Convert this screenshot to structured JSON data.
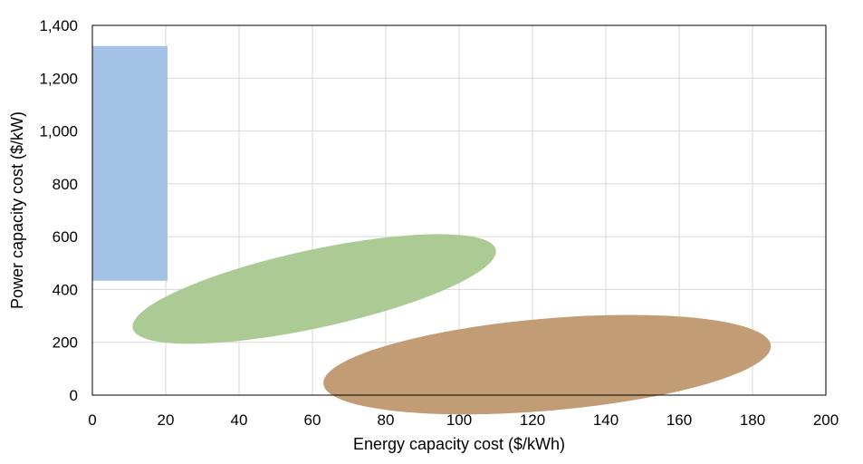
{
  "chart_data": {
    "type": "scatter",
    "title": "",
    "xlabel": "Energy capacity cost ($/kWh)",
    "ylabel": "Power capacity cost ($/kW)",
    "xlim": [
      0,
      200
    ],
    "ylim": [
      0,
      1400
    ],
    "x_ticks": [
      0,
      20,
      40,
      60,
      80,
      100,
      120,
      140,
      160,
      180,
      200
    ],
    "y_ticks": [
      0,
      200,
      400,
      600,
      800,
      1000,
      1200,
      1400
    ],
    "x_tick_labels": [
      "0",
      "20",
      "40",
      "60",
      "80",
      "100",
      "120",
      "140",
      "160",
      "180",
      "200"
    ],
    "y_tick_labels": [
      "0",
      "200",
      "400",
      "600",
      "800",
      "1,000",
      "1,200",
      "1,400"
    ],
    "grid": true,
    "legend": "none",
    "regions": [
      {
        "shape": "rectangle",
        "color": "#a4c2e6",
        "x_range": [
          0,
          20.5
        ],
        "y_range": [
          433,
          1322
        ]
      },
      {
        "shape": "ellipse",
        "color": "#acca94",
        "center": [
          60.5,
          402
        ],
        "major_axis_endpoints": [
          [
            11,
            253
          ],
          [
            110,
            551
          ]
        ],
        "width_ratio": 0.21
      },
      {
        "shape": "ellipse",
        "color": "#c29c74",
        "center": [
          123.5,
          115
        ],
        "major_axis_endpoints": [
          [
            63,
            43
          ],
          [
            185,
            188
          ]
        ],
        "width_ratio": 0.205
      }
    ]
  }
}
